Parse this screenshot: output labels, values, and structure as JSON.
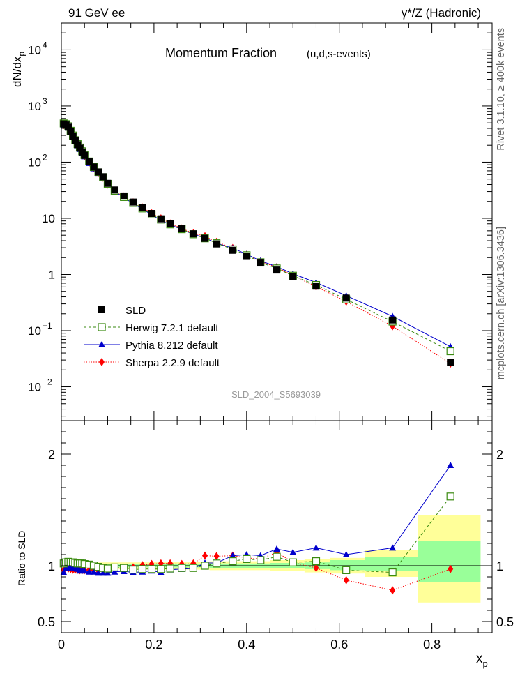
{
  "header": {
    "left": "91 GeV ee",
    "right_main": "γ*/Z (Hadronic)"
  },
  "side_labels": {
    "rivet": "Rivet 3.1.10, ≥ 400k events",
    "mcplots": "mcplots.cern.ch [arXiv:1306.3436]"
  },
  "chart_data": [
    {
      "type": "scatter",
      "title": "Momentum Fraction",
      "subtitle": "(u,d,s-events)",
      "watermark": "SLD_2004_S5693039",
      "ylabel": "dN/dx",
      "ylabel_sub": "p",
      "yscale": "log",
      "ylim": [
        0.0025,
        30000
      ],
      "xlim": [
        0,
        0.93
      ],
      "ytick_labels": [
        {
          "v": 10000,
          "base": "10",
          "exp": "4"
        },
        {
          "v": 1000,
          "base": "10",
          "exp": "3"
        },
        {
          "v": 100,
          "base": "10",
          "exp": "2"
        },
        {
          "v": 10,
          "base": "10",
          "exp": ""
        },
        {
          "v": 1,
          "base": "1",
          "exp": ""
        },
        {
          "v": 0.1,
          "base": "10",
          "exp": "−1"
        },
        {
          "v": 0.01,
          "base": "10",
          "exp": "−2"
        }
      ],
      "x": [
        0.005,
        0.01,
        0.015,
        0.02,
        0.025,
        0.03,
        0.035,
        0.04,
        0.045,
        0.05,
        0.06,
        0.07,
        0.08,
        0.09,
        0.1,
        0.115,
        0.135,
        0.155,
        0.175,
        0.195,
        0.215,
        0.235,
        0.26,
        0.285,
        0.31,
        0.335,
        0.37,
        0.4,
        0.43,
        0.465,
        0.5,
        0.55,
        0.615,
        0.715,
        0.84
      ],
      "series": [
        {
          "name": "SLD",
          "style": "data",
          "values": [
            480,
            460,
            420,
            350,
            290,
            240,
            205,
            178,
            152,
            132,
            102,
            82,
            67,
            55,
            42,
            32,
            25,
            19.5,
            15.5,
            12.2,
            9.8,
            8,
            6.5,
            5.3,
            4.4,
            3.5,
            2.7,
            2.1,
            1.6,
            1.2,
            0.92,
            0.62,
            0.38,
            0.155,
            0.027
          ]
        },
        {
          "name": "Herwig 7.2.1 default",
          "style": "herwig",
          "color": "#3a8a10",
          "values": [
            490,
            475,
            435,
            362,
            298,
            246,
            210,
            182,
            156,
            134,
            103,
            82,
            66,
            54,
            41,
            31,
            24,
            18.8,
            15,
            11.8,
            9.5,
            7.8,
            6.4,
            5.2,
            4.4,
            3.6,
            2.8,
            2.2,
            1.65,
            1.28,
            0.95,
            0.65,
            0.36,
            0.145,
            0.043
          ]
        },
        {
          "name": "Pythia 8.212 default",
          "style": "pythia",
          "color": "#0000cc",
          "values": [
            450,
            450,
            410,
            345,
            285,
            234,
            198,
            170,
            146,
            126,
            96,
            77,
            62,
            51,
            39,
            30,
            23.5,
            18.2,
            14.6,
            11.6,
            9.2,
            7.7,
            6.3,
            5.2,
            4.5,
            3.6,
            2.95,
            2.3,
            1.75,
            1.38,
            1.03,
            0.72,
            0.42,
            0.18,
            0.052
          ]
        },
        {
          "name": "Sherpa 2.2.9 default",
          "style": "sherpa",
          "color": "#ff0000",
          "values": [
            460,
            455,
            410,
            340,
            280,
            232,
            198,
            171,
            146,
            127,
            98,
            79,
            64,
            53,
            40,
            31,
            24.5,
            19.2,
            15.6,
            12.3,
            10,
            8.1,
            6.6,
            5.4,
            4.8,
            3.8,
            2.95,
            2.25,
            1.7,
            1.35,
            0.95,
            0.61,
            0.33,
            0.12,
            0.026
          ]
        }
      ],
      "legend": {
        "placement": "bottom-left",
        "entries": [
          "SLD",
          "Herwig 7.2.1 default",
          "Pythia 8.212 default",
          "Sherpa 2.2.9 default"
        ]
      }
    },
    {
      "type": "scatter",
      "ylabel": "Ratio to SLD",
      "xlabel": "x",
      "xlabel_sub": "p",
      "ylim": [
        0.4,
        2.3
      ],
      "xlim": [
        0,
        0.93
      ],
      "ytick_labels": [
        {
          "v": 0.5,
          "t": "0.5"
        },
        {
          "v": 1,
          "t": "1"
        },
        {
          "v": 2,
          "t": "2"
        }
      ],
      "xtick_labels": [
        {
          "v": 0,
          "t": "0"
        },
        {
          "v": 0.2,
          "t": "0.2"
        },
        {
          "v": 0.4,
          "t": "0.4"
        },
        {
          "v": 0.6,
          "t": "0.6"
        },
        {
          "v": 0.8,
          "t": "0.8"
        }
      ],
      "bands": [
        {
          "x0": 0.0,
          "x1": 0.08,
          "g": [
            0.985,
            1.015
          ],
          "y": [
            0.97,
            1.03
          ]
        },
        {
          "x0": 0.08,
          "x1": 0.2,
          "g": [
            0.985,
            1.015
          ],
          "y": [
            0.97,
            1.03
          ]
        },
        {
          "x0": 0.2,
          "x1": 0.32,
          "g": [
            0.985,
            1.015
          ],
          "y": [
            0.965,
            1.035
          ]
        },
        {
          "x0": 0.32,
          "x1": 0.45,
          "g": [
            0.98,
            1.02
          ],
          "y": [
            0.96,
            1.04
          ]
        },
        {
          "x0": 0.45,
          "x1": 0.525,
          "g": [
            0.975,
            1.025
          ],
          "y": [
            0.95,
            1.05
          ]
        },
        {
          "x0": 0.525,
          "x1": 0.58,
          "g": [
            0.97,
            1.03
          ],
          "y": [
            0.94,
            1.06
          ]
        },
        {
          "x0": 0.58,
          "x1": 0.655,
          "g": [
            0.96,
            1.05
          ],
          "y": [
            0.93,
            1.07
          ]
        },
        {
          "x0": 0.655,
          "x1": 0.77,
          "g": [
            0.955,
            1.075
          ],
          "y": [
            0.9,
            1.14
          ]
        },
        {
          "x0": 0.77,
          "x1": 0.905,
          "g": [
            0.85,
            1.22
          ],
          "y": [
            0.67,
            1.45
          ]
        }
      ],
      "series": [
        {
          "name": "Herwig 7.2.1 default",
          "style": "herwig",
          "color": "#3a8a10",
          "values": [
            1.02,
            1.03,
            1.035,
            1.03,
            1.03,
            1.025,
            1.02,
            1.02,
            1.02,
            1.015,
            1.01,
            1.0,
            0.99,
            0.98,
            0.975,
            0.985,
            0.98,
            0.965,
            0.97,
            0.97,
            0.97,
            0.975,
            0.98,
            0.98,
            1.0,
            1.02,
            1.04,
            1.06,
            1.05,
            1.08,
            1.03,
            1.04,
            0.96,
            0.94,
            1.62
          ]
        },
        {
          "name": "Pythia 8.212 default",
          "style": "pythia",
          "color": "#0000cc",
          "values": [
            0.94,
            0.98,
            0.98,
            0.985,
            0.985,
            0.975,
            0.97,
            0.955,
            0.96,
            0.955,
            0.945,
            0.945,
            0.935,
            0.935,
            0.935,
            0.945,
            0.95,
            0.94,
            0.945,
            0.955,
            0.94,
            0.965,
            0.97,
            0.975,
            1.025,
            1.025,
            1.09,
            1.1,
            1.09,
            1.15,
            1.12,
            1.16,
            1.1,
            1.16,
            1.9
          ]
        },
        {
          "name": "Sherpa 2.2.9 default",
          "style": "sherpa",
          "color": "#ff0000",
          "values": [
            0.96,
            0.985,
            0.975,
            0.97,
            0.965,
            0.965,
            0.965,
            0.96,
            0.96,
            0.96,
            0.96,
            0.965,
            0.955,
            0.965,
            0.955,
            0.97,
            0.98,
            0.985,
            1.005,
            1.015,
            1.02,
            1.02,
            1.015,
            1.02,
            1.09,
            1.085,
            1.09,
            1.07,
            1.06,
            1.12,
            1.03,
            0.98,
            0.87,
            0.78,
            0.97
          ]
        }
      ]
    }
  ]
}
